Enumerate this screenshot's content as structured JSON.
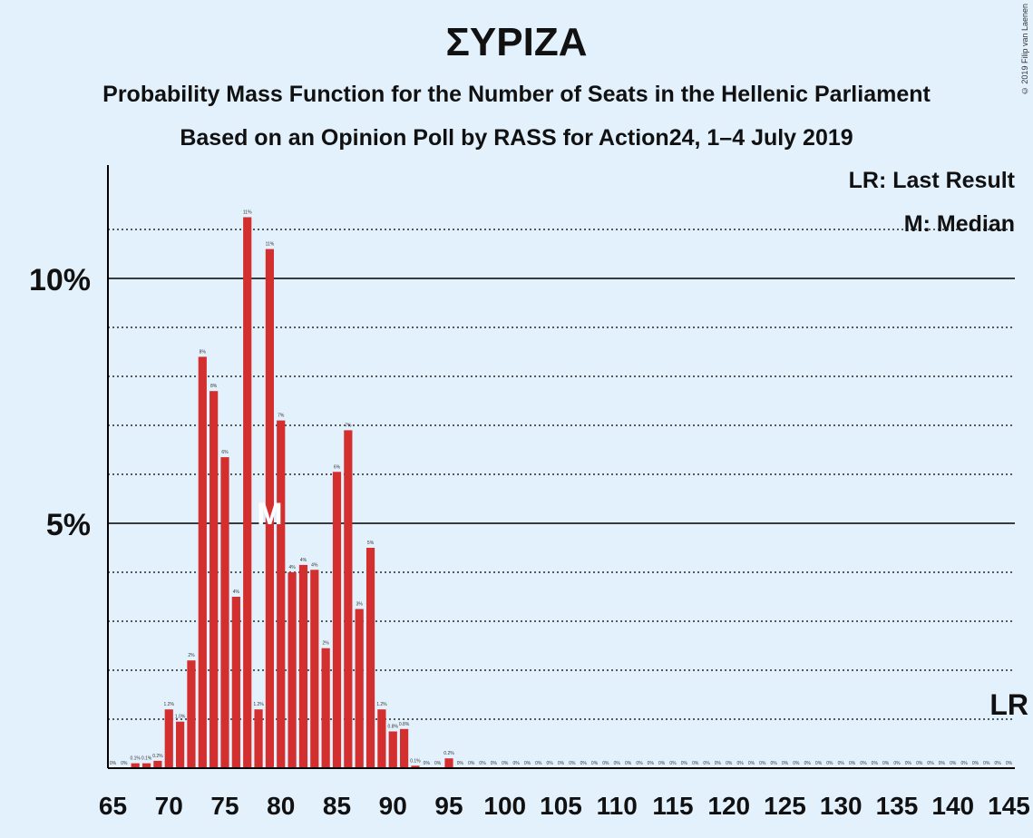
{
  "titles": {
    "main": "ΣΥΡΙΖΑ",
    "subtitle": "Probability Mass Function for the Number of Seats in the Hellenic Parliament",
    "subtitle2": "Based on an Opinion Poll by RASS for Action24, 1–4 July 2019"
  },
  "copyright": "© 2019 Filip van Laenen",
  "legend": {
    "lr": "LR: Last Result",
    "m": "M: Median"
  },
  "markers": {
    "median_label": "M",
    "median_seat": 79,
    "last_result_label": "LR",
    "last_result_seat": 145
  },
  "colors": {
    "bar": "#d32f2f",
    "background": "#e3f1fd"
  },
  "chart_data": {
    "type": "bar",
    "x": [
      65,
      66,
      67,
      68,
      69,
      70,
      71,
      72,
      73,
      74,
      75,
      76,
      77,
      78,
      79,
      80,
      81,
      82,
      83,
      84,
      85,
      86,
      87,
      88,
      89,
      90,
      91,
      92,
      93,
      94,
      95,
      96,
      97,
      98,
      99,
      100,
      101,
      102,
      103,
      104,
      105,
      106,
      107,
      108,
      109,
      110,
      111,
      112,
      113,
      114,
      115,
      116,
      117,
      118,
      119,
      120,
      121,
      122,
      123,
      124,
      125,
      126,
      127,
      128,
      129,
      130,
      131,
      132,
      133,
      134,
      135,
      136,
      137,
      138,
      139,
      140,
      141,
      142,
      143,
      144,
      145
    ],
    "values": [
      0,
      0,
      0.1,
      0.1,
      0.15,
      1.2,
      0.95,
      2.2,
      8.4,
      7.7,
      6.35,
      3.5,
      11.25,
      1.2,
      10.6,
      7.1,
      4.0,
      4.15,
      4.05,
      2.45,
      6.05,
      6.9,
      3.25,
      4.5,
      1.2,
      0.75,
      0.8,
      0.05,
      0,
      0,
      0.2,
      0,
      0,
      0,
      0,
      0,
      0,
      0,
      0,
      0,
      0,
      0,
      0,
      0,
      0,
      0,
      0,
      0,
      0,
      0,
      0,
      0,
      0,
      0,
      0,
      0,
      0,
      0,
      0,
      0,
      0,
      0,
      0,
      0,
      0,
      0,
      0,
      0,
      0,
      0,
      0,
      0,
      0,
      0,
      0,
      0,
      0,
      0,
      0,
      0,
      0
    ],
    "value_labels": [
      "0%",
      "0%",
      "0.1%",
      "0.1%",
      "0.2%",
      "1.2%",
      "1.0%",
      "2%",
      "8%",
      "8%",
      "6%",
      "4%",
      "11%",
      "1.2%",
      "11%",
      "7%",
      "4%",
      "4%",
      "4%",
      "2%",
      "6%",
      "7%",
      "3%",
      "5%",
      "1.2%",
      "0.8%",
      "0.8%",
      "0.1%",
      "0%",
      "0%",
      "0.2%",
      "0%",
      "0%",
      "0%",
      "0%",
      "0%",
      "0%",
      "0%",
      "0%",
      "0%",
      "0%",
      "0%",
      "0%",
      "0%",
      "0%",
      "0%",
      "0%",
      "0%",
      "0%",
      "0%",
      "0%",
      "0%",
      "0%",
      "0%",
      "0%",
      "0%",
      "0%",
      "0%",
      "0%",
      "0%",
      "0%",
      "0%",
      "0%",
      "0%",
      "0%",
      "0%",
      "0%",
      "0%",
      "0%",
      "0%",
      "0%",
      "0%",
      "0%",
      "0%",
      "0%",
      "0%",
      "0%",
      "0%",
      "0%",
      "0%",
      "0%"
    ],
    "x_ticks": [
      65,
      70,
      75,
      80,
      85,
      90,
      95,
      100,
      105,
      110,
      115,
      120,
      125,
      130,
      135,
      140,
      145
    ],
    "x_tick_labels": [
      "65",
      "70",
      "75",
      "80",
      "85",
      "90",
      "95",
      "100",
      "105",
      "110",
      "115",
      "120",
      "125",
      "130",
      "135",
      "140",
      "145"
    ],
    "y_ticks": [
      5,
      10
    ],
    "y_tick_labels": [
      "5%",
      "10%"
    ],
    "ylim": [
      0,
      12.3
    ],
    "grid": "dotted every 1%, solid at 5% and 10%"
  }
}
